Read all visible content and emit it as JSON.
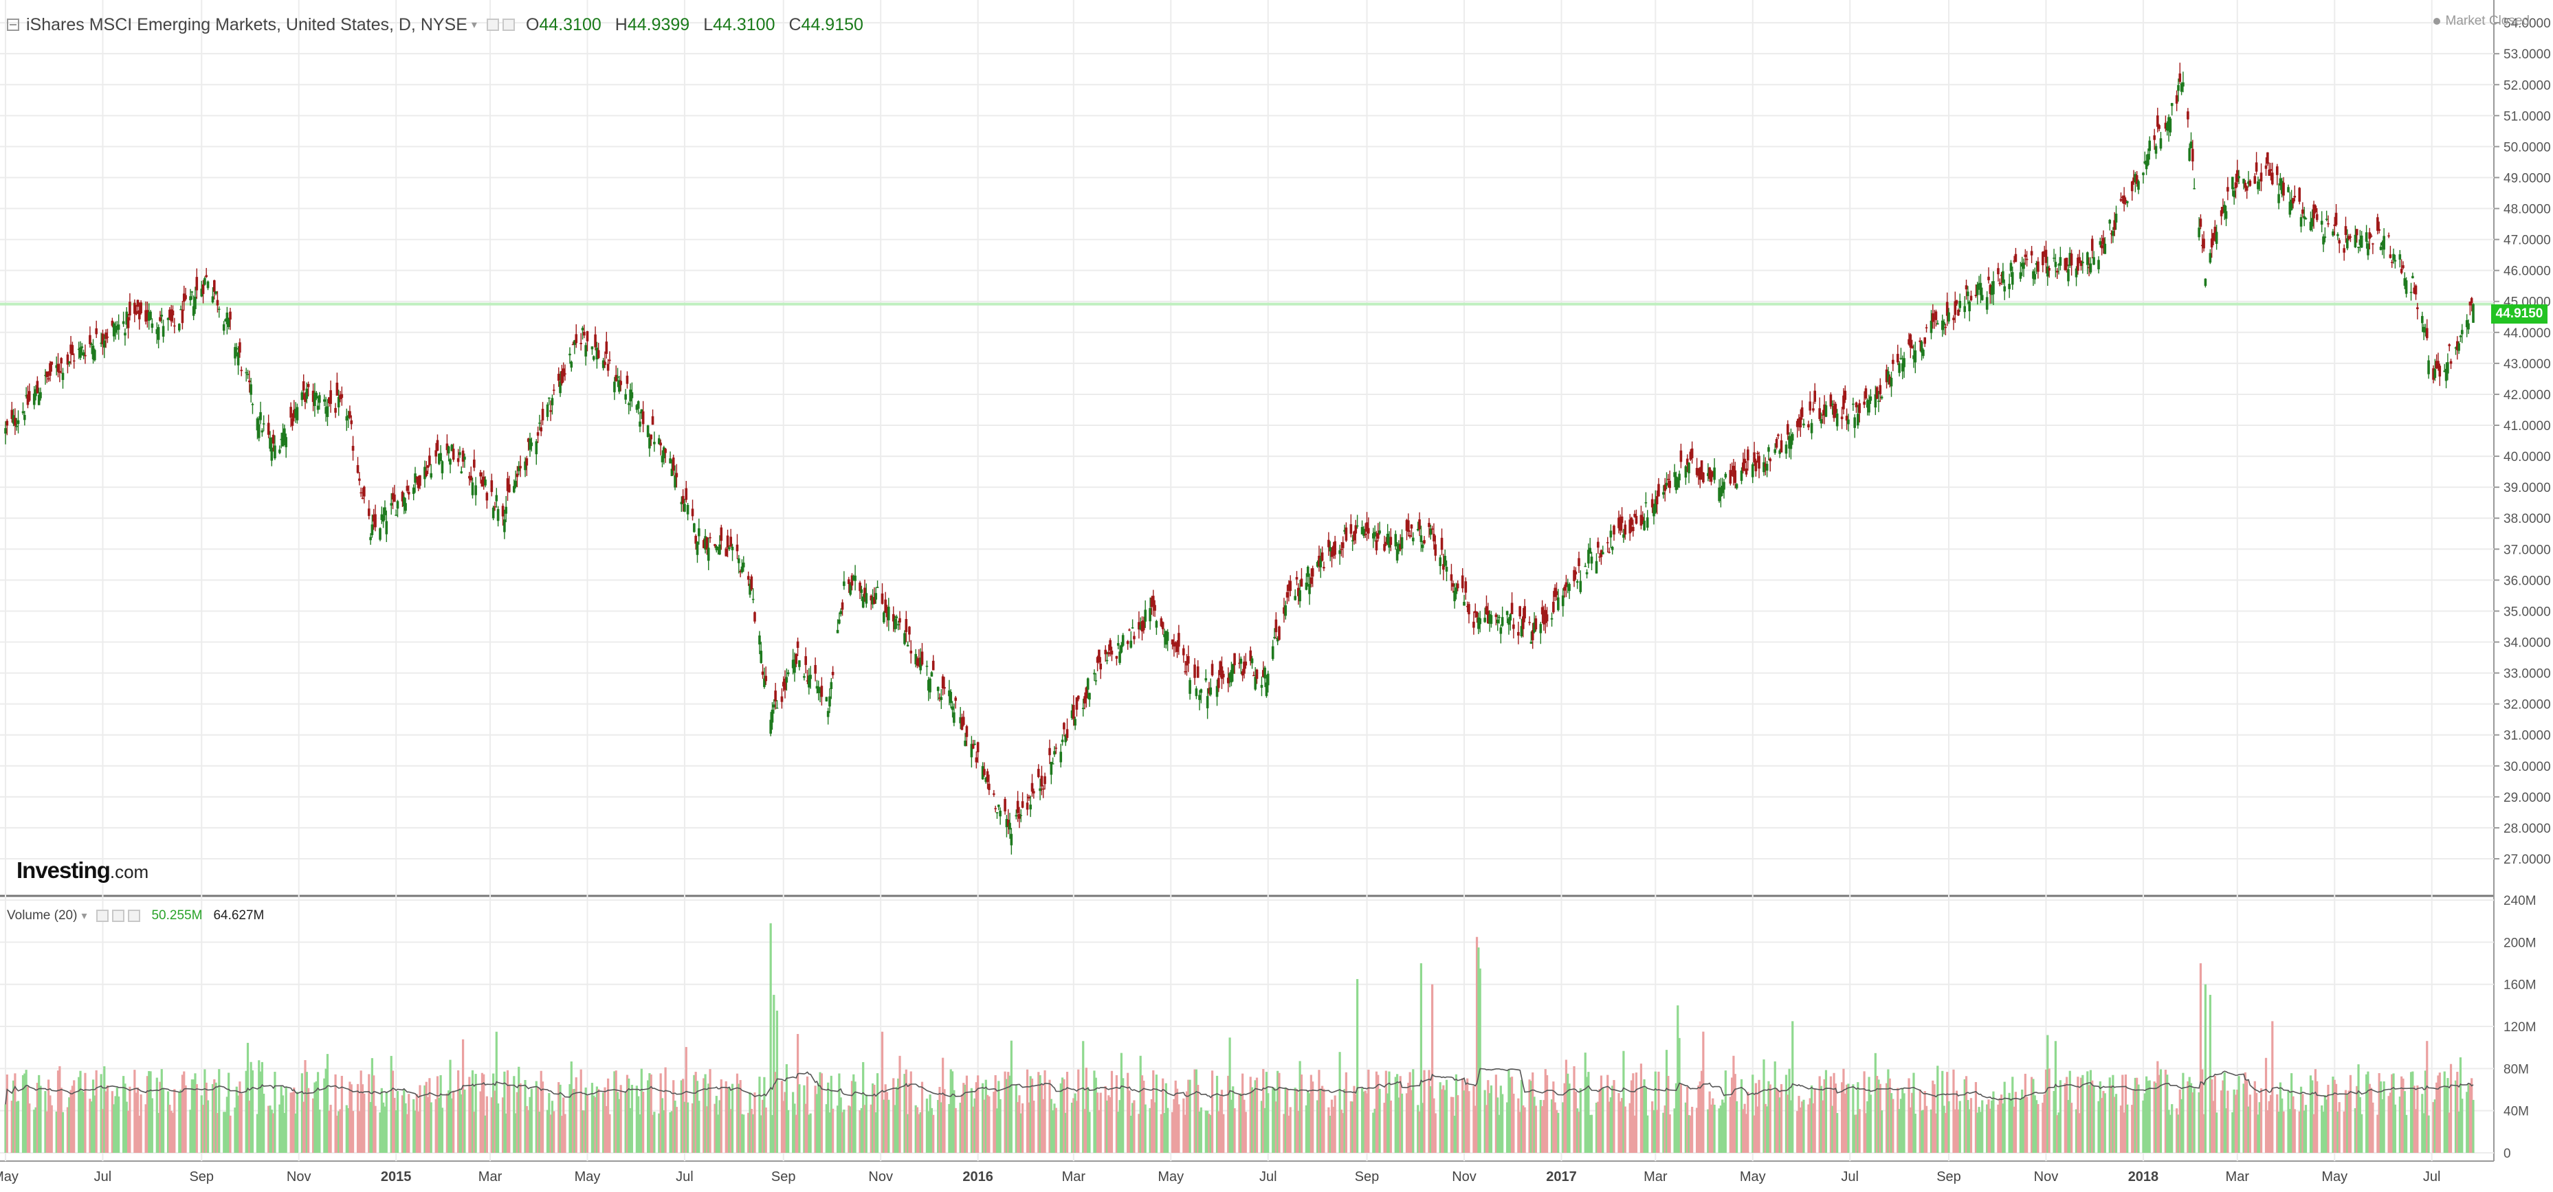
{
  "legend": {
    "title": "iShares MSCI Emerging Markets, United States, D, NYSE",
    "open_label": "O",
    "open": "44.3100",
    "high_label": "H",
    "high": "44.9399",
    "low_label": "L",
    "low": "44.3100",
    "close_label": "C",
    "close": "44.9150"
  },
  "market_status": "Market Closed",
  "logo": {
    "brand": "Investing",
    "suffix": ".com"
  },
  "last_price_label": "44.9150",
  "volume_legend": {
    "name": "Volume (20)",
    "value": "50.255M",
    "ma_value": "64.627M"
  },
  "colors": {
    "up": "#1e7a1e",
    "down": "#a01818",
    "vol_up": "#8fd98f",
    "vol_down": "#eba0a0",
    "ma": "#555555",
    "grid": "#ececec",
    "last_line": "#bfefbf",
    "last_label": "#22c322"
  },
  "chart_data": [
    {
      "type": "candlestick",
      "title": "iShares MSCI Emerging Markets, United States, D, NYSE",
      "date_range": [
        "2014-05-01",
        "2018-07-27"
      ],
      "ylim": [
        26.5,
        54.5
      ],
      "y_ticks": [
        "54.0000",
        "53.0000",
        "52.0000",
        "51.0000",
        "50.0000",
        "49.0000",
        "48.0000",
        "47.0000",
        "46.0000",
        "45.0000",
        "44.0000",
        "43.0000",
        "42.0000",
        "41.0000",
        "40.0000",
        "39.0000",
        "38.0000",
        "37.0000",
        "36.0000",
        "35.0000",
        "34.0000",
        "33.0000",
        "32.0000",
        "31.0000",
        "30.0000",
        "29.0000",
        "28.0000",
        "27.0000"
      ],
      "x_ticks": [
        {
          "label": "May",
          "date": "2014-05-01"
        },
        {
          "label": "Jul",
          "date": "2014-07-01"
        },
        {
          "label": "Sep",
          "date": "2014-09-01"
        },
        {
          "label": "Nov",
          "date": "2014-11-01"
        },
        {
          "label": "2015",
          "date": "2015-01-01"
        },
        {
          "label": "Mar",
          "date": "2015-03-01"
        },
        {
          "label": "May",
          "date": "2015-05-01"
        },
        {
          "label": "Jul",
          "date": "2015-07-01"
        },
        {
          "label": "Sep",
          "date": "2015-09-01"
        },
        {
          "label": "Nov",
          "date": "2015-11-01"
        },
        {
          "label": "2016",
          "date": "2016-01-01"
        },
        {
          "label": "Mar",
          "date": "2016-03-01"
        },
        {
          "label": "May",
          "date": "2016-05-01"
        },
        {
          "label": "Jul",
          "date": "2016-07-01"
        },
        {
          "label": "Sep",
          "date": "2016-09-01"
        },
        {
          "label": "Nov",
          "date": "2016-11-01"
        },
        {
          "label": "2017",
          "date": "2017-01-01"
        },
        {
          "label": "Mar",
          "date": "2017-03-01"
        },
        {
          "label": "May",
          "date": "2017-05-01"
        },
        {
          "label": "Jul",
          "date": "2017-07-01"
        },
        {
          "label": "Sep",
          "date": "2017-09-01"
        },
        {
          "label": "Nov",
          "date": "2017-11-01"
        },
        {
          "label": "2018",
          "date": "2018-01-01"
        },
        {
          "label": "Mar",
          "date": "2018-03-01"
        },
        {
          "label": "May",
          "date": "2018-05-01"
        },
        {
          "label": "Jul",
          "date": "2018-07-01"
        }
      ],
      "bold_x_ticks": [
        "2015",
        "2016",
        "2017",
        "2018"
      ],
      "last_price": 44.915,
      "close_path": [
        [
          "2014-05-01",
          40.8
        ],
        [
          "2014-06-01",
          42.8
        ],
        [
          "2014-07-01",
          43.9
        ],
        [
          "2014-07-25",
          44.6
        ],
        [
          "2014-08-15",
          44.2
        ],
        [
          "2014-09-05",
          45.8
        ],
        [
          "2014-09-20",
          44.0
        ],
        [
          "2014-10-05",
          41.5
        ],
        [
          "2014-10-16",
          40.2
        ],
        [
          "2014-11-05",
          42.0
        ],
        [
          "2014-12-01",
          41.5
        ],
        [
          "2014-12-16",
          37.5
        ],
        [
          "2015-01-10",
          39.0
        ],
        [
          "2015-02-01",
          40.3
        ],
        [
          "2015-03-10",
          38.3
        ],
        [
          "2015-04-01",
          41.0
        ],
        [
          "2015-04-28",
          44.0
        ],
        [
          "2015-05-20",
          42.5
        ],
        [
          "2015-06-20",
          40.0
        ],
        [
          "2015-07-08",
          37.5
        ],
        [
          "2015-07-25",
          37.0
        ],
        [
          "2015-08-10",
          36.3
        ],
        [
          "2015-08-24",
          31.5
        ],
        [
          "2015-09-10",
          33.5
        ],
        [
          "2015-09-29",
          32.0
        ],
        [
          "2015-10-10",
          36.0
        ],
        [
          "2015-10-30",
          35.5
        ],
        [
          "2015-12-01",
          33.0
        ],
        [
          "2015-12-16",
          32.0
        ],
        [
          "2016-01-20",
          28.0
        ],
        [
          "2016-02-10",
          29.5
        ],
        [
          "2016-03-15",
          33.0
        ],
        [
          "2016-04-20",
          35.0
        ],
        [
          "2016-05-20",
          32.5
        ],
        [
          "2016-06-20",
          33.3
        ],
        [
          "2016-06-27",
          32.5
        ],
        [
          "2016-07-15",
          35.5
        ],
        [
          "2016-08-20",
          37.5
        ],
        [
          "2016-09-15",
          37.2
        ],
        [
          "2016-10-10",
          37.5
        ],
        [
          "2016-11-10",
          34.5
        ],
        [
          "2016-11-20",
          34.9
        ],
        [
          "2016-12-15",
          34.3
        ],
        [
          "2017-01-20",
          36.8
        ],
        [
          "2017-02-20",
          38.0
        ],
        [
          "2017-03-20",
          39.7
        ],
        [
          "2017-04-15",
          39.2
        ],
        [
          "2017-05-10",
          40.0
        ],
        [
          "2017-06-10",
          41.5
        ],
        [
          "2017-07-10",
          41.5
        ],
        [
          "2017-08-10",
          43.5
        ],
        [
          "2017-09-10",
          45.0
        ],
        [
          "2017-10-20",
          46.2
        ],
        [
          "2017-12-01",
          46.3
        ],
        [
          "2018-01-26",
          52.0
        ],
        [
          "2018-02-09",
          46.0
        ],
        [
          "2018-02-25",
          48.7
        ],
        [
          "2018-03-20",
          49.2
        ],
        [
          "2018-04-10",
          48.0
        ],
        [
          "2018-05-10",
          46.8
        ],
        [
          "2018-06-01",
          47.0
        ],
        [
          "2018-06-20",
          45.5
        ],
        [
          "2018-07-03",
          42.5
        ],
        [
          "2018-07-19",
          43.8
        ],
        [
          "2018-07-27",
          44.915
        ]
      ]
    },
    {
      "type": "bar",
      "title": "Volume (20)",
      "series_name": "Volume",
      "ma_name": "MA 20",
      "ylim": [
        0,
        240
      ],
      "y_unit": "M",
      "y_ticks": [
        "240M",
        "200M",
        "160M",
        "120M",
        "80M",
        "40M",
        "0"
      ],
      "last_value_m": 50.255,
      "last_ma_m": 64.627,
      "spikes_m": [
        [
          "2015-08-24",
          218
        ],
        [
          "2015-08-26",
          150
        ],
        [
          "2015-08-28",
          135
        ],
        [
          "2015-11-02",
          115
        ],
        [
          "2016-08-26",
          165
        ],
        [
          "2016-10-05",
          180
        ],
        [
          "2016-10-12",
          160
        ],
        [
          "2016-11-09",
          205
        ],
        [
          "2016-11-10",
          195
        ],
        [
          "2016-11-11",
          175
        ],
        [
          "2017-03-15",
          140
        ],
        [
          "2017-05-26",
          125
        ],
        [
          "2018-02-06",
          180
        ],
        [
          "2018-02-09",
          160
        ],
        [
          "2018-02-12",
          150
        ],
        [
          "2018-03-23",
          125
        ]
      ]
    }
  ]
}
